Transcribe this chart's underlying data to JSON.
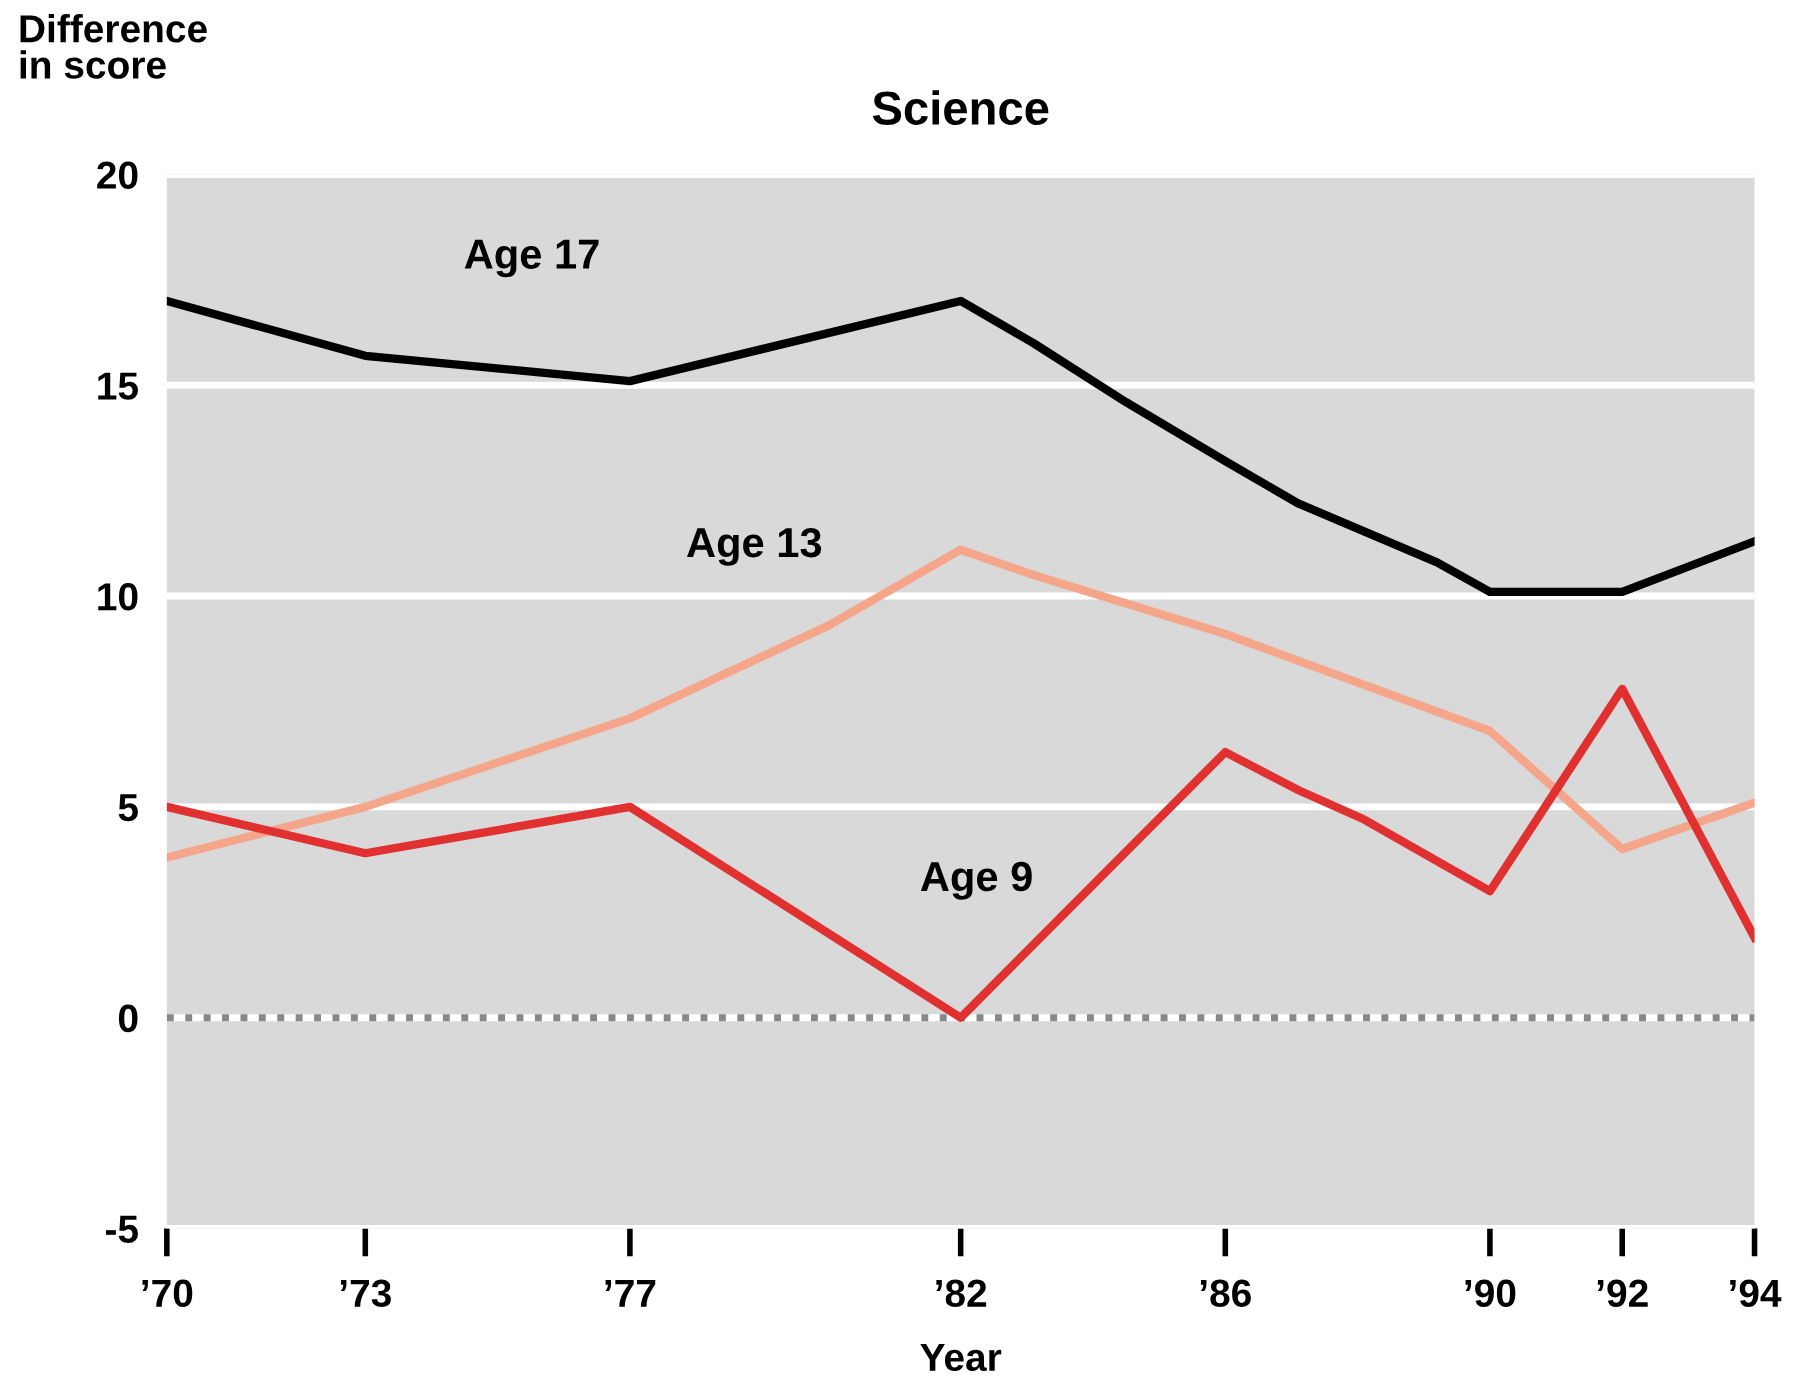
{
  "chart_data": {
    "type": "line",
    "title": "Science",
    "ylabel": "Difference\nin score",
    "xlabel": "Year",
    "xlim": [
      1970,
      1994
    ],
    "xticks": [
      {
        "value": 1970,
        "label": "’70"
      },
      {
        "value": 1973,
        "label": "’73"
      },
      {
        "value": 1977,
        "label": "’77"
      },
      {
        "value": 1982,
        "label": "’82"
      },
      {
        "value": 1986,
        "label": "’86"
      },
      {
        "value": 1990,
        "label": "’90"
      },
      {
        "value": 1992,
        "label": "’92"
      },
      {
        "value": 1994,
        "label": "’94"
      }
    ],
    "ylim": [
      -5,
      20
    ],
    "yticks": [
      -5,
      0,
      5,
      10,
      15,
      20
    ],
    "grid": "y",
    "legend": false,
    "marker": "none",
    "line_style": "solid",
    "ref_lines": [
      {
        "axis": "y",
        "value": 0,
        "color": "#888888",
        "line_style": "dotted"
      }
    ],
    "series": [
      {
        "name": "Age 17",
        "color": "#000000",
        "x": [
          1970,
          1973,
          1977,
          1982,
          1983.1,
          1984.5,
          1986,
          1987.1,
          1989.2,
          1990,
          1992,
          1994
        ],
        "values": [
          17.0,
          15.7,
          15.1,
          17.0,
          16.0,
          14.6,
          13.2,
          12.2,
          10.8,
          10.1,
          10.1,
          11.3
        ]
      },
      {
        "name": "Age 13",
        "color": "#f4a58a",
        "x": [
          1970,
          1973,
          1977,
          1980,
          1982,
          1983.1,
          1986,
          1990,
          1992,
          1994
        ],
        "values": [
          3.8,
          5.0,
          7.1,
          9.3,
          11.1,
          10.5,
          9.1,
          6.8,
          4.0,
          5.1
        ]
      },
      {
        "name": "Age 9",
        "color": "#e03030",
        "x": [
          1970,
          1973,
          1977,
          1982,
          1986,
          1987.1,
          1988.1,
          1990,
          1992,
          1994
        ],
        "values": [
          5.0,
          3.9,
          5.0,
          0.0,
          6.3,
          5.4,
          4.7,
          3.0,
          7.8,
          1.9
        ]
      }
    ]
  }
}
